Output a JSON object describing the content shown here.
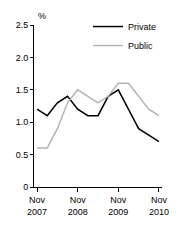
{
  "chart_data": {
    "type": "line",
    "y_label": "%",
    "categories": [
      "Nov 2007",
      null,
      null,
      null,
      "Nov 2008",
      null,
      null,
      null,
      "Nov 2009",
      null,
      null,
      null,
      "Nov 2010"
    ],
    "series": [
      {
        "name": "Private",
        "color": "#000000",
        "values": [
          1.2,
          1.1,
          1.3,
          1.4,
          1.2,
          1.1,
          1.1,
          1.4,
          1.5,
          1.2,
          0.9,
          0.8,
          0.7
        ]
      },
      {
        "name": "Public",
        "color": "#b3b3b3",
        "values": [
          0.6,
          0.6,
          0.9,
          1.3,
          1.5,
          1.4,
          1.3,
          1.4,
          1.6,
          1.6,
          1.4,
          1.2,
          1.1
        ]
      }
    ],
    "ylim": [
      0,
      2.5
    ],
    "yticks": [
      0,
      0.5,
      {
        "value": 1.0,
        "label": "1.0"
      },
      1.5,
      {
        "value": 2.0,
        "label": "2.0"
      },
      2.5
    ],
    "grid": false,
    "legend": "top-right"
  }
}
